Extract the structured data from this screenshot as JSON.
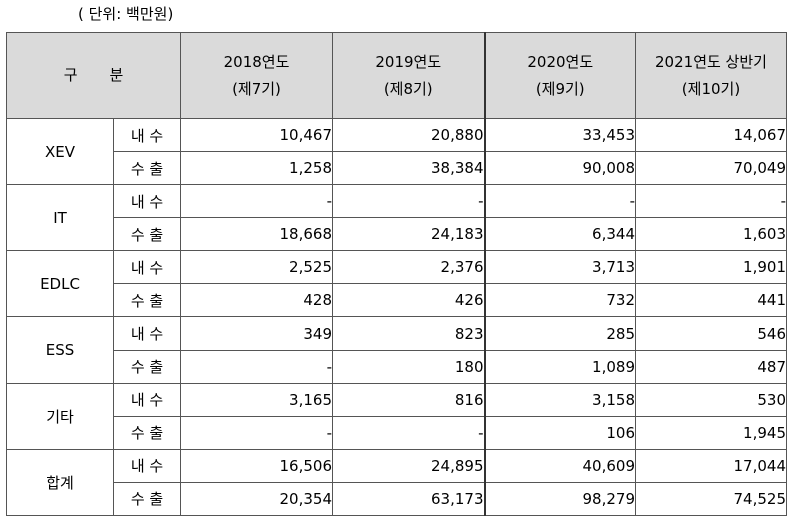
{
  "unit_label": "( 단위: 백만원)",
  "header": {
    "category_a": "구",
    "category_b": "분",
    "columns": [
      {
        "year": "2018연도",
        "term": "(제7기)"
      },
      {
        "year": "2019연도",
        "term": "(제8기)"
      },
      {
        "year": "2020연도",
        "term": "(제9기)"
      },
      {
        "year": "2021연도 상반기",
        "term": "(제10기)"
      }
    ]
  },
  "groups": [
    {
      "name": "XEV",
      "rows": [
        {
          "sub": "내 수",
          "values": [
            "10,467",
            "20,880",
            "33,453",
            "14,067"
          ]
        },
        {
          "sub": "수 출",
          "values": [
            "1,258",
            "38,384",
            "90,008",
            "70,049"
          ]
        }
      ]
    },
    {
      "name": "IT",
      "rows": [
        {
          "sub": "내 수",
          "values": [
            "-",
            "-",
            "-",
            "-"
          ]
        },
        {
          "sub": "수 출",
          "values": [
            "18,668",
            "24,183",
            "6,344",
            "1,603"
          ]
        }
      ]
    },
    {
      "name": "EDLC",
      "rows": [
        {
          "sub": "내 수",
          "values": [
            "2,525",
            "2,376",
            "3,713",
            "1,901"
          ]
        },
        {
          "sub": "수 출",
          "values": [
            "428",
            "426",
            "732",
            "441"
          ]
        }
      ]
    },
    {
      "name": "ESS",
      "rows": [
        {
          "sub": "내 수",
          "values": [
            "349",
            "823",
            "285",
            "546"
          ]
        },
        {
          "sub": "수 출",
          "values": [
            "-",
            "180",
            "1,089",
            "487"
          ]
        }
      ]
    },
    {
      "name": "기타",
      "rows": [
        {
          "sub": "내 수",
          "values": [
            "3,165",
            "816",
            "3,158",
            "530"
          ]
        },
        {
          "sub": "수 출",
          "values": [
            "-",
            "-",
            "106",
            "1,945"
          ]
        }
      ]
    },
    {
      "name": "합계",
      "rows": [
        {
          "sub": "내 수",
          "values": [
            "16,506",
            "24,895",
            "40,609",
            "17,044"
          ]
        },
        {
          "sub": "수 출",
          "values": [
            "20,354",
            "63,173",
            "98,279",
            "74,525"
          ]
        }
      ]
    }
  ]
}
